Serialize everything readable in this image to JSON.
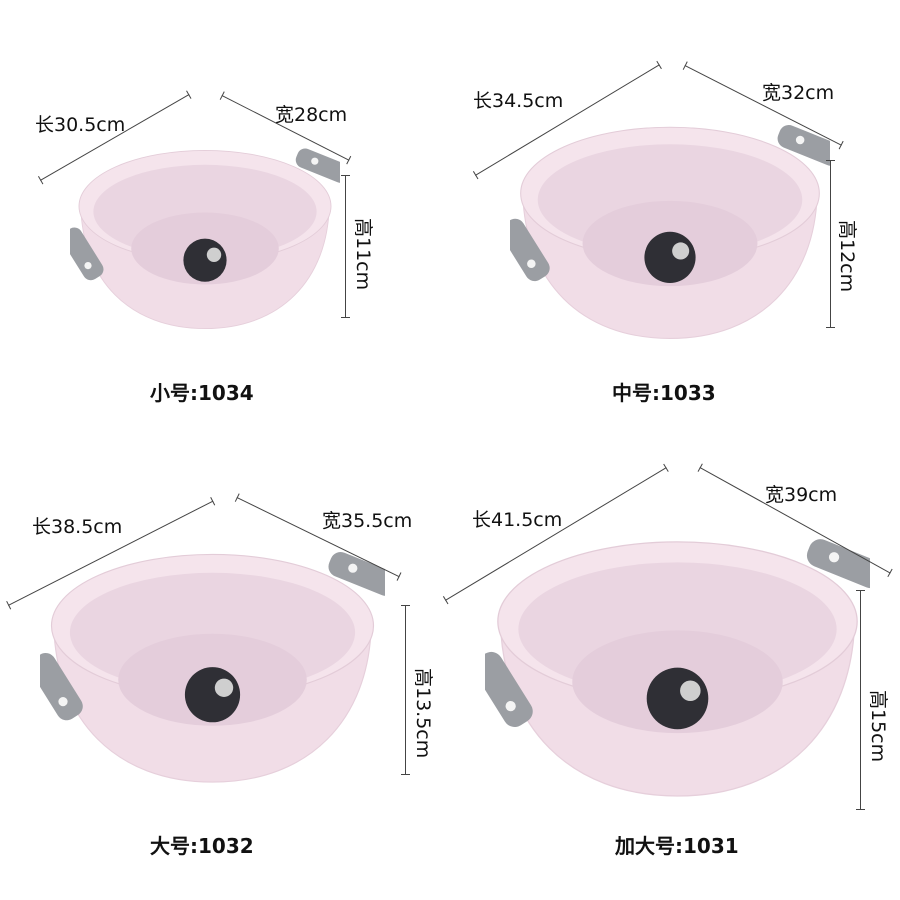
{
  "products": [
    {
      "length": "长30.5cm",
      "width": "宽28cm",
      "height": "高11cm",
      "model": "小号:1034"
    },
    {
      "length": "长34.5cm",
      "width": "宽32cm",
      "height": "高12cm",
      "model": "中号:1033"
    },
    {
      "length": "长38.5cm",
      "width": "宽35.5cm",
      "height": "高13.5cm",
      "model": "大号:1032"
    },
    {
      "length": "长41.5cm",
      "width": "宽39cm",
      "height": "高15cm",
      "model": "加大号:1031"
    }
  ],
  "colors": {
    "bowl": "#f1dde7",
    "handle": "#9b9ea3",
    "sticker": "#2f2f35"
  }
}
